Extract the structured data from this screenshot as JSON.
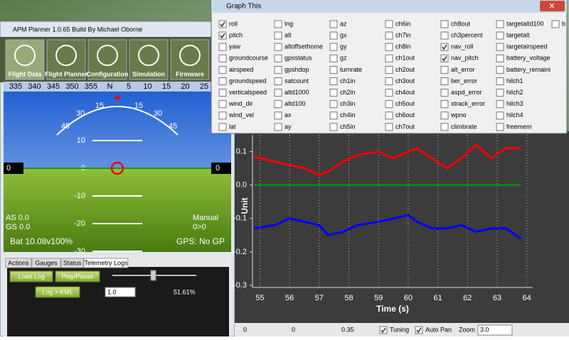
{
  "window": {
    "title": "APM Planner 1.0.65 Build  By Michael Oborne",
    "toolbar": [
      "Flight Data",
      "Flight Planner",
      "Configuration",
      "Simulation",
      "Firmware"
    ]
  },
  "hud": {
    "heading_tape": [
      "335",
      "340",
      "345",
      "350",
      "355",
      "N",
      "5",
      "10",
      "15",
      "20",
      "25"
    ],
    "roll_scale": [
      "45",
      "30",
      "15",
      "15",
      "30",
      "45"
    ],
    "pitch_labels": [
      "10",
      "0",
      "-10",
      "-20",
      "-30"
    ],
    "left_indicator": "0",
    "right_indicator": "0",
    "airspeed": "AS 0.0",
    "groundspeed": "GS 0.0",
    "battery": "Bat 10.08v100%",
    "mode": "Manual",
    "waypoint": "0>0",
    "gps": "GPS: No GP"
  },
  "tabs": [
    "Actions",
    "Gauges",
    "Status",
    "Telemetry Logs"
  ],
  "log_controls": {
    "load": "Load Log",
    "play": "Play/Pause",
    "kml": "Log > KML",
    "speed": "1.0",
    "progress": "51.61%"
  },
  "graph_dialog": {
    "title": "Graph This",
    "columns": [
      [
        {
          "label": "roll",
          "checked": true
        },
        {
          "label": "pitch",
          "checked": true
        },
        {
          "label": "yaw",
          "checked": false
        },
        {
          "label": "groundcourse",
          "checked": false
        },
        {
          "label": "airspeed",
          "checked": false
        },
        {
          "label": "groundspeed",
          "checked": false
        },
        {
          "label": "verticalspeed",
          "checked": false
        },
        {
          "label": "wind_dir",
          "checked": false
        },
        {
          "label": "wind_vel",
          "checked": false
        },
        {
          "label": "lat",
          "checked": false
        }
      ],
      [
        {
          "label": "lng",
          "checked": false
        },
        {
          "label": "alt",
          "checked": false
        },
        {
          "label": "altoffsethome",
          "checked": false
        },
        {
          "label": "gpsstatus",
          "checked": false
        },
        {
          "label": "gpshdop",
          "checked": false
        },
        {
          "label": "satcount",
          "checked": false
        },
        {
          "label": "altd1000",
          "checked": false
        },
        {
          "label": "altd100",
          "checked": false
        },
        {
          "label": "ax",
          "checked": false
        },
        {
          "label": "ay",
          "checked": false
        }
      ],
      [
        {
          "label": "az",
          "checked": false
        },
        {
          "label": "gx",
          "checked": false
        },
        {
          "label": "gy",
          "checked": false
        },
        {
          "label": "gz",
          "checked": false
        },
        {
          "label": "turnrate",
          "checked": false
        },
        {
          "label": "ch1in",
          "checked": false
        },
        {
          "label": "ch2in",
          "checked": false
        },
        {
          "label": "ch3in",
          "checked": false
        },
        {
          "label": "ch4in",
          "checked": false
        },
        {
          "label": "ch5in",
          "checked": false
        }
      ],
      [
        {
          "label": "ch6in",
          "checked": false
        },
        {
          "label": "ch7in",
          "checked": false
        },
        {
          "label": "ch8in",
          "checked": false
        },
        {
          "label": "ch1out",
          "checked": false
        },
        {
          "label": "ch2out",
          "checked": false
        },
        {
          "label": "ch3out",
          "checked": false
        },
        {
          "label": "ch4out",
          "checked": false
        },
        {
          "label": "ch5out",
          "checked": false
        },
        {
          "label": "ch6out",
          "checked": false
        },
        {
          "label": "ch7out",
          "checked": false
        }
      ],
      [
        {
          "label": "ch8out",
          "checked": false
        },
        {
          "label": "ch3percent",
          "checked": false
        },
        {
          "label": "nav_roll",
          "checked": true
        },
        {
          "label": "nav_pitch",
          "checked": true
        },
        {
          "label": "alt_error",
          "checked": false
        },
        {
          "label": "ber_error",
          "checked": false
        },
        {
          "label": "aspd_error",
          "checked": false
        },
        {
          "label": "xtrack_error",
          "checked": false
        },
        {
          "label": "wpno",
          "checked": false
        },
        {
          "label": "climbrate",
          "checked": false
        }
      ],
      [
        {
          "label": "targetaltd100",
          "checked": false
        },
        {
          "label": "targetalt",
          "checked": false
        },
        {
          "label": "targetairspeed",
          "checked": false
        },
        {
          "label": "battery_voltage",
          "checked": false
        },
        {
          "label": "battery_remaini",
          "checked": false
        },
        {
          "label": "hilch1",
          "checked": false
        },
        {
          "label": "hilch2",
          "checked": false
        },
        {
          "label": "hilch3",
          "checked": false
        },
        {
          "label": "hilch4",
          "checked": false
        },
        {
          "label": "freemem",
          "checked": false
        }
      ],
      [
        {
          "label": "b",
          "checked": false
        }
      ]
    ]
  },
  "chart_data": {
    "type": "line",
    "x": [
      54.8,
      55.5,
      56,
      56.5,
      57,
      57.3,
      57.8,
      58.3,
      59,
      59.5,
      60,
      60.3,
      60.8,
      61.3,
      61.8,
      62.3,
      62.8,
      63.3,
      63.8
    ],
    "series": [
      {
        "color": "#ff0000",
        "values": [
          0.085,
          0.07,
          0.06,
          0.05,
          0.03,
          0.04,
          0.07,
          0.09,
          0.1,
          0.08,
          0.1,
          0.11,
          0.08,
          0.05,
          0.08,
          0.12,
          0.08,
          0.11,
          0.11
        ]
      },
      {
        "color": "#0000ff",
        "values": [
          -0.13,
          -0.12,
          -0.1,
          -0.11,
          -0.12,
          -0.15,
          -0.14,
          -0.12,
          -0.11,
          -0.1,
          -0.09,
          -0.11,
          -0.13,
          -0.13,
          -0.12,
          -0.14,
          -0.13,
          -0.13,
          -0.16
        ]
      },
      {
        "color": "#00a000",
        "values": [
          0,
          0,
          0,
          0,
          0,
          0,
          0,
          0,
          0,
          0,
          0,
          0,
          0,
          0,
          0,
          0,
          0,
          0,
          0
        ]
      }
    ],
    "xlim": [
      54.75,
      64.2
    ],
    "ylim": [
      -0.3,
      0.15
    ],
    "xticks": [
      55,
      56,
      57,
      58,
      59,
      60,
      61,
      62,
      63,
      64
    ],
    "yticks": [
      0.1,
      {
        "value": 0,
        "label": "0.0"
      },
      -0.1,
      -0.2,
      -0.3
    ],
    "xlabel": "Time (s)",
    "ylabel": "Unit",
    "grid": true
  },
  "status_bar": {
    "values": [
      "0",
      "0",
      "0.35"
    ],
    "tuning": {
      "label": "Tuning",
      "checked": true
    },
    "auto_pan": {
      "label": "Auto Pan",
      "checked": true
    },
    "zoom_label": "Zoom",
    "zoom": "3.0"
  }
}
